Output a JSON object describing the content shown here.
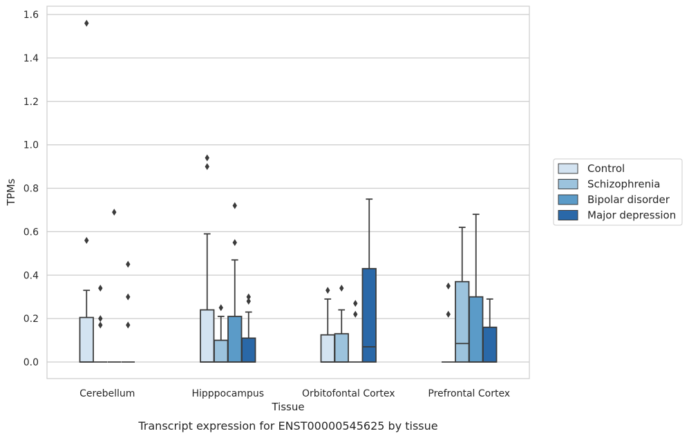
{
  "chart_data": {
    "type": "box",
    "xlabel": "Tissue",
    "ylabel": "TPMs",
    "caption": "Transcript expression for ENST00000545625 by tissue",
    "ylim": [
      -0.075,
      1.645
    ],
    "yticks": [
      "0.0",
      "0.2",
      "0.4",
      "0.6",
      "0.8",
      "1.0",
      "1.2",
      "1.4",
      "1.6"
    ],
    "grid": true,
    "legend_position": "right",
    "categories": [
      "Cerebellum",
      "Hipppocampus",
      "Orbitofontal Cortex",
      "Prefrontal Cortex"
    ],
    "series": [
      {
        "name": "Control",
        "color": "#d3e3f1",
        "boxes": [
          {
            "q1": 0.0,
            "median": 0.0,
            "q3": 0.205,
            "whisker_low": 0.0,
            "whisker_high": 0.33,
            "outliers": [
              1.56,
              0.56
            ]
          },
          {
            "q1": 0.0,
            "median": 0.0,
            "q3": 0.24,
            "whisker_low": 0.0,
            "whisker_high": 0.59,
            "outliers": [
              0.94,
              0.9
            ]
          },
          {
            "q1": 0.0,
            "median": 0.0,
            "q3": 0.125,
            "whisker_low": 0.0,
            "whisker_high": 0.29,
            "outliers": [
              0.33
            ]
          },
          {
            "q1": 0.0,
            "median": 0.0,
            "q3": 0.0,
            "whisker_low": 0.0,
            "whisker_high": 0.0,
            "outliers": [
              0.35,
              0.22
            ]
          }
        ]
      },
      {
        "name": "Schizophrenia",
        "color": "#9cc3dd",
        "boxes": [
          {
            "q1": 0.0,
            "median": 0.0,
            "q3": 0.0,
            "whisker_low": 0.0,
            "whisker_high": 0.0,
            "outliers": [
              0.34,
              0.2,
              0.17
            ]
          },
          {
            "q1": 0.0,
            "median": 0.0,
            "q3": 0.1,
            "whisker_low": 0.0,
            "whisker_high": 0.21,
            "outliers": [
              0.25
            ]
          },
          {
            "q1": 0.0,
            "median": 0.0,
            "q3": 0.13,
            "whisker_low": 0.0,
            "whisker_high": 0.24,
            "outliers": [
              0.34
            ]
          },
          {
            "q1": 0.0,
            "median": 0.085,
            "q3": 0.37,
            "whisker_low": 0.0,
            "whisker_high": 0.62,
            "outliers": []
          }
        ]
      },
      {
        "name": "Bipolar disorder",
        "color": "#5b9bc8",
        "boxes": [
          {
            "q1": 0.0,
            "median": 0.0,
            "q3": 0.0,
            "whisker_low": 0.0,
            "whisker_high": 0.0,
            "outliers": [
              0.69
            ]
          },
          {
            "q1": 0.0,
            "median": 0.0,
            "q3": 0.21,
            "whisker_low": 0.0,
            "whisker_high": 0.47,
            "outliers": [
              0.72,
              0.55
            ]
          },
          {
            "q1": 0.0,
            "median": 0.0,
            "q3": 0.0,
            "whisker_low": 0.0,
            "whisker_high": 0.0,
            "outliers": [
              0.27,
              0.22
            ]
          },
          {
            "q1": 0.0,
            "median": 0.0,
            "q3": 0.3,
            "whisker_low": 0.0,
            "whisker_high": 0.68,
            "outliers": []
          }
        ]
      },
      {
        "name": "Major depression",
        "color": "#2a68a8",
        "boxes": [
          {
            "q1": 0.0,
            "median": 0.0,
            "q3": 0.0,
            "whisker_low": 0.0,
            "whisker_high": 0.0,
            "outliers": [
              0.45,
              0.3,
              0.17
            ]
          },
          {
            "q1": 0.0,
            "median": 0.0,
            "q3": 0.11,
            "whisker_low": 0.0,
            "whisker_high": 0.23,
            "outliers": [
              0.3,
              0.28
            ]
          },
          {
            "q1": 0.0,
            "median": 0.07,
            "q3": 0.43,
            "whisker_low": 0.0,
            "whisker_high": 0.75,
            "outliers": []
          },
          {
            "q1": 0.0,
            "median": 0.0,
            "q3": 0.16,
            "whisker_low": 0.0,
            "whisker_high": 0.29,
            "outliers": []
          }
        ]
      }
    ]
  }
}
